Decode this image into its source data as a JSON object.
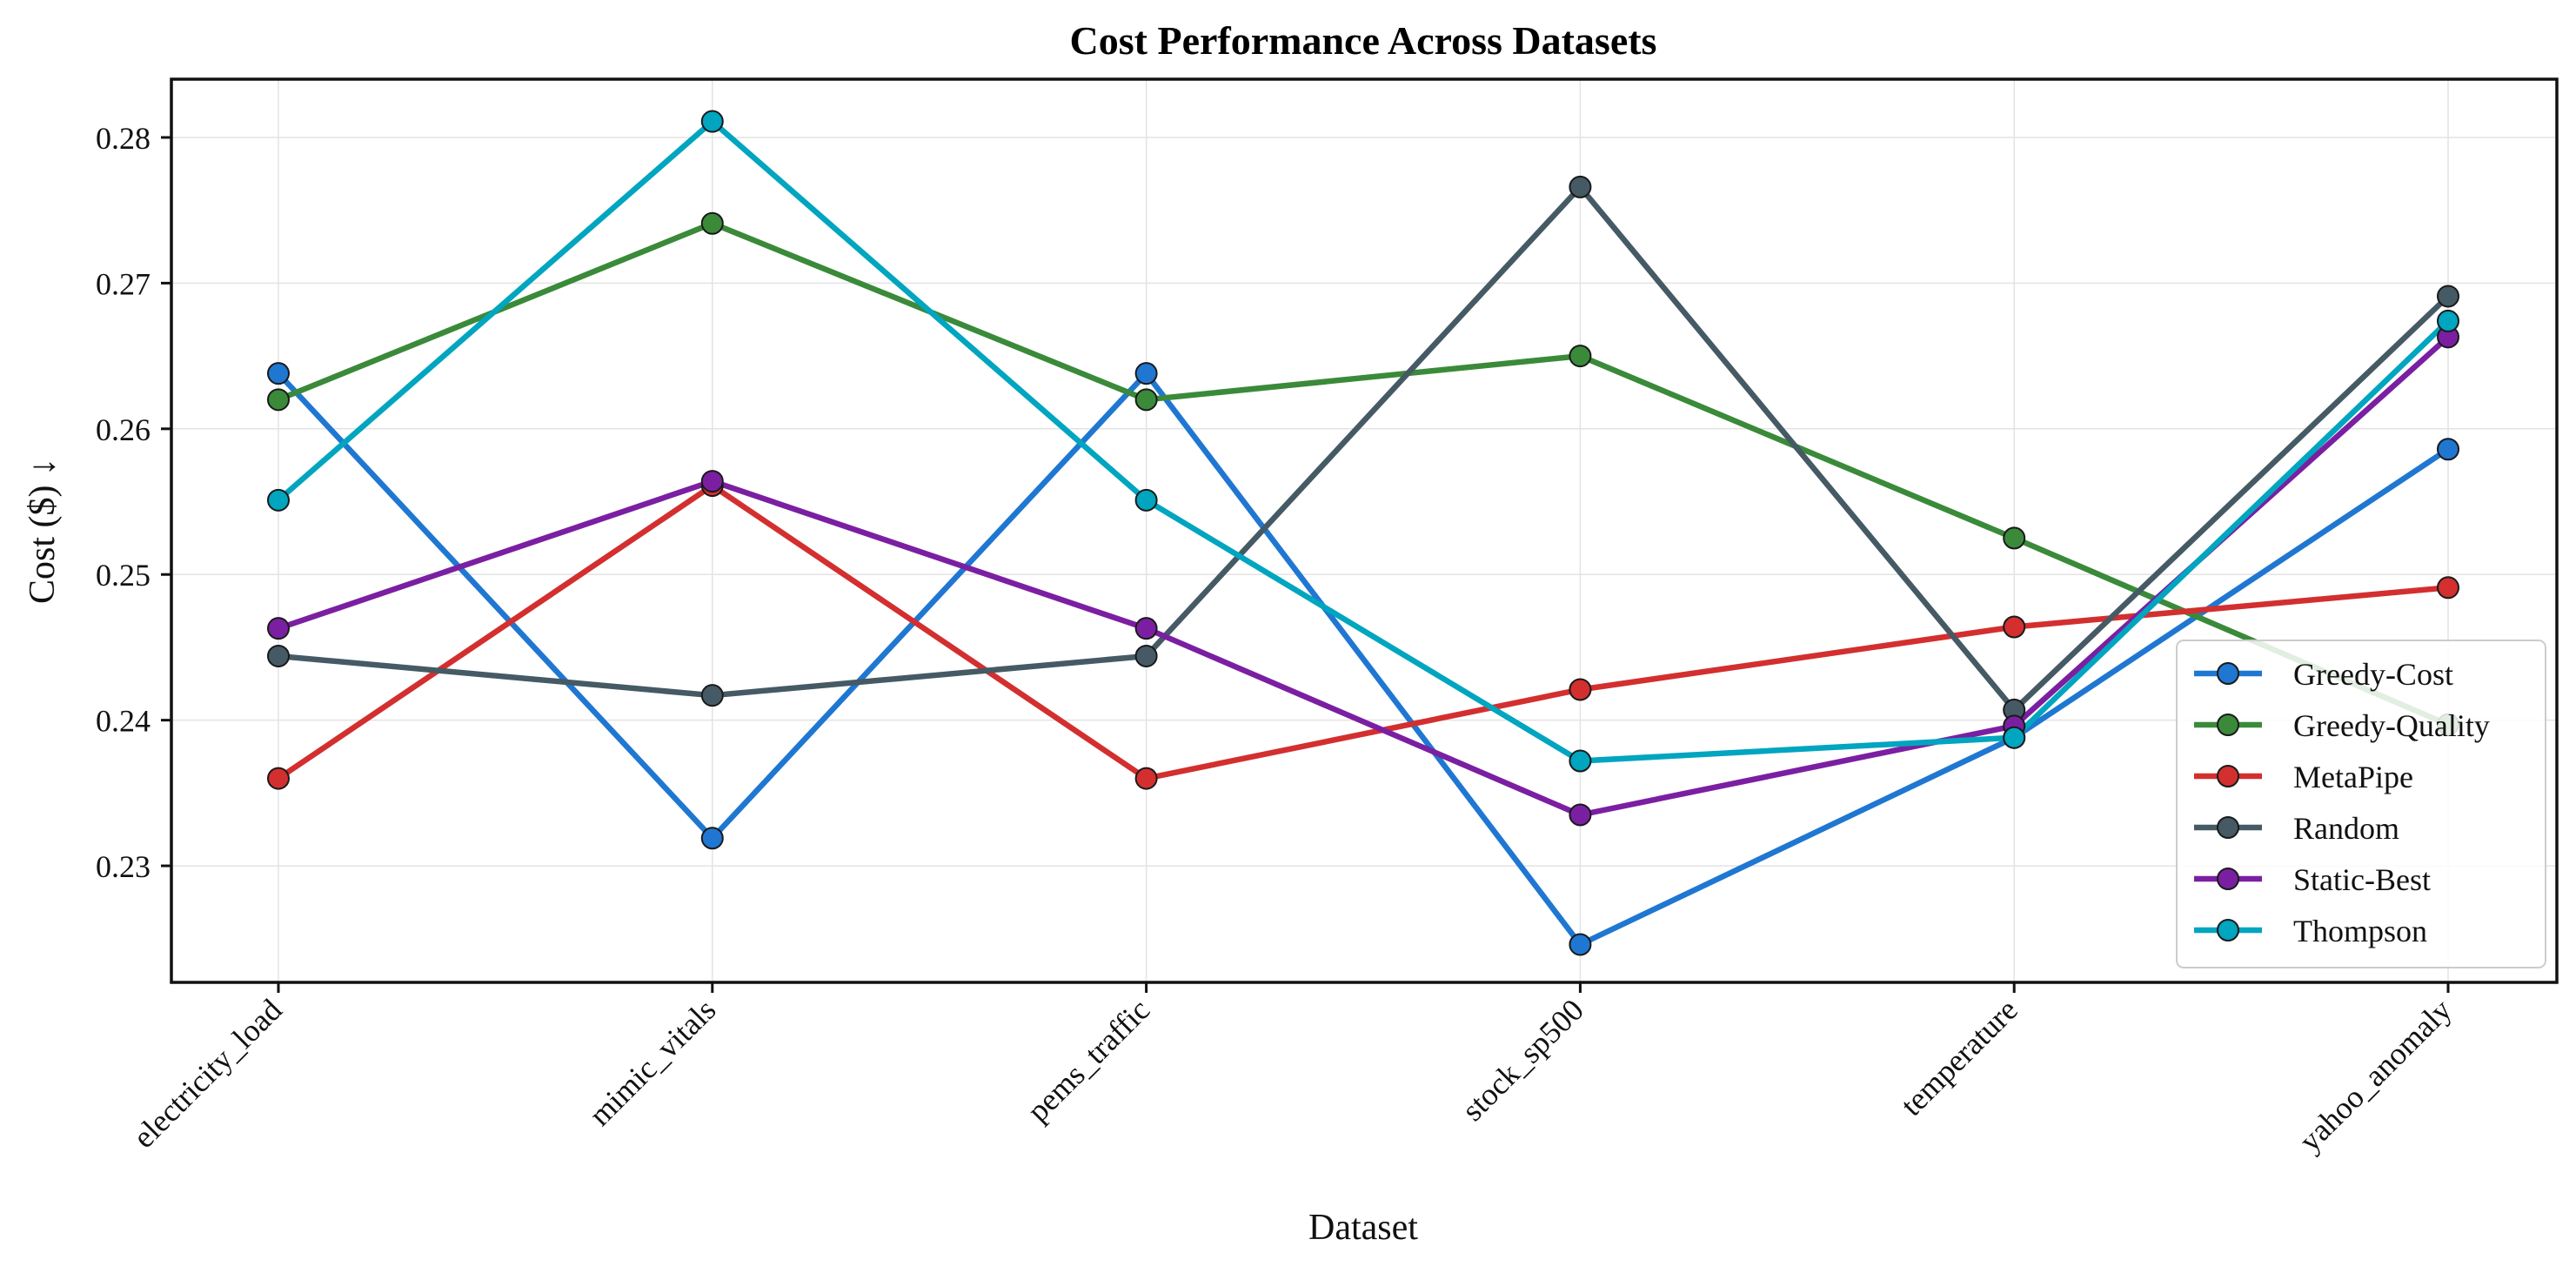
{
  "chart_data": {
    "type": "line",
    "title": "Cost Performance Across Datasets",
    "xlabel": "Dataset",
    "ylabel": "Cost ($) ↓",
    "categories": [
      "electricity_load",
      "mimic_vitals",
      "pems_traffic",
      "stock_sp500",
      "temperature",
      "yahoo_anomaly"
    ],
    "ylim": [
      0.222,
      0.284
    ],
    "yticks": [
      0.23,
      0.24,
      0.25,
      0.26,
      0.27,
      0.28
    ],
    "ytick_labels": [
      "0.23",
      "0.24",
      "0.25",
      "0.26",
      "0.27",
      "0.28"
    ],
    "grid": true,
    "legend_position": "bottom-right",
    "series": [
      {
        "name": "Greedy-Cost",
        "color": "#1f77d2",
        "values": [
          0.2638,
          0.2319,
          0.2638,
          0.2246,
          0.2388,
          0.2586
        ]
      },
      {
        "name": "Greedy-Quality",
        "color": "#3a8a3a",
        "values": [
          0.262,
          0.2741,
          0.262,
          0.265,
          0.2525,
          0.2397
        ]
      },
      {
        "name": "MetaPipe",
        "color": "#d32f2f",
        "values": [
          0.236,
          0.2561,
          0.236,
          0.2421,
          0.2464,
          0.2491
        ]
      },
      {
        "name": "Random",
        "color": "#455a64",
        "values": [
          0.2444,
          0.2417,
          0.2444,
          0.2766,
          0.2407,
          0.2691
        ]
      },
      {
        "name": "Static-Best",
        "color": "#7b1fa2",
        "values": [
          0.2463,
          0.2564,
          0.2463,
          0.2335,
          0.2396,
          0.2663
        ]
      },
      {
        "name": "Thompson",
        "color": "#00a5bf",
        "values": [
          0.2551,
          0.2811,
          0.2551,
          0.2372,
          0.2388,
          0.2674
        ]
      }
    ]
  }
}
